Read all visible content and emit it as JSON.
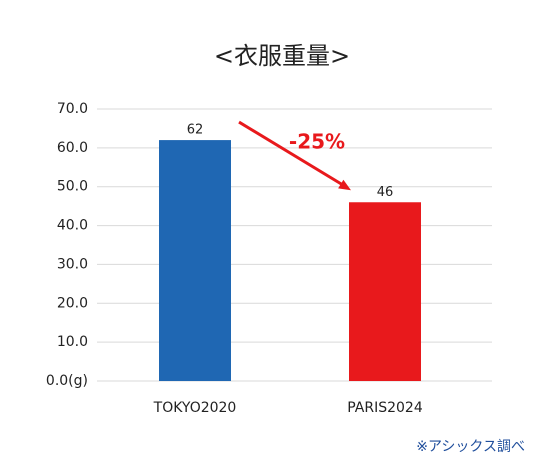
{
  "chart_data": {
    "type": "bar",
    "title": "<衣服重量>",
    "categories": [
      "TOKYO2020",
      "PARIS2024"
    ],
    "values": [
      62,
      46
    ],
    "colors": [
      "#1f67b3",
      "#e8191c"
    ],
    "ylim": [
      0,
      70
    ],
    "yticks": [
      {
        "value": 0,
        "label": "0.0(g)"
      },
      {
        "value": 10,
        "label": "10.0"
      },
      {
        "value": 20,
        "label": "20.0"
      },
      {
        "value": 30,
        "label": "30.0"
      },
      {
        "value": 40,
        "label": "40.0"
      },
      {
        "value": 50,
        "label": "50.0"
      },
      {
        "value": 60,
        "label": "60.0"
      },
      {
        "value": 70,
        "label": "70.0"
      }
    ],
    "grid": true,
    "annotation": "-25%",
    "source": "※アシックス調べ"
  }
}
